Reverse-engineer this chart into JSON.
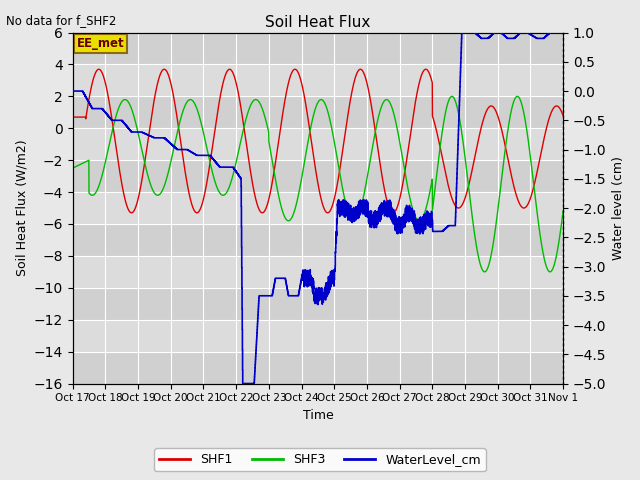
{
  "title": "Soil Heat Flux",
  "title_note": "No data for f_SHF2",
  "xlabel": "Time",
  "ylabel_left": "Soil Heat Flux (W/m2)",
  "ylabel_right": "Water level (cm)",
  "ylim_left": [
    -16,
    6
  ],
  "ylim_right": [
    -5.0,
    1.0
  ],
  "yticks_left": [
    -16,
    -14,
    -12,
    -10,
    -8,
    -6,
    -4,
    -2,
    0,
    2,
    4,
    6
  ],
  "yticks_right": [
    -5.0,
    -4.5,
    -4.0,
    -3.5,
    -3.0,
    -2.5,
    -2.0,
    -1.5,
    -1.0,
    -0.5,
    0.0,
    0.5,
    1.0
  ],
  "background_color": "#e8e8e8",
  "plot_bg_color": "#d8d8d8",
  "grid_color": "#ffffff",
  "colors": {
    "SHF1": "#dd0000",
    "SHF3": "#00bb00",
    "WaterLevel": "#0000cc"
  },
  "box_label": "EE_met",
  "box_facecolor": "#e8e000",
  "box_edgecolor": "#8b6914",
  "xtick_labels": [
    "Oct 17",
    "Oct 18",
    "Oct 19",
    "Oct 20",
    "Oct 21",
    "Oct 22",
    "Oct 23",
    "Oct 24",
    "Oct 25",
    "Oct 26",
    "Oct 27",
    "Oct 28",
    "Oct 29",
    "Oct 30",
    "Oct 31",
    "Nov 1"
  ],
  "legend_labels": [
    "SHF1",
    "SHF3",
    "WaterLevel_cm"
  ]
}
